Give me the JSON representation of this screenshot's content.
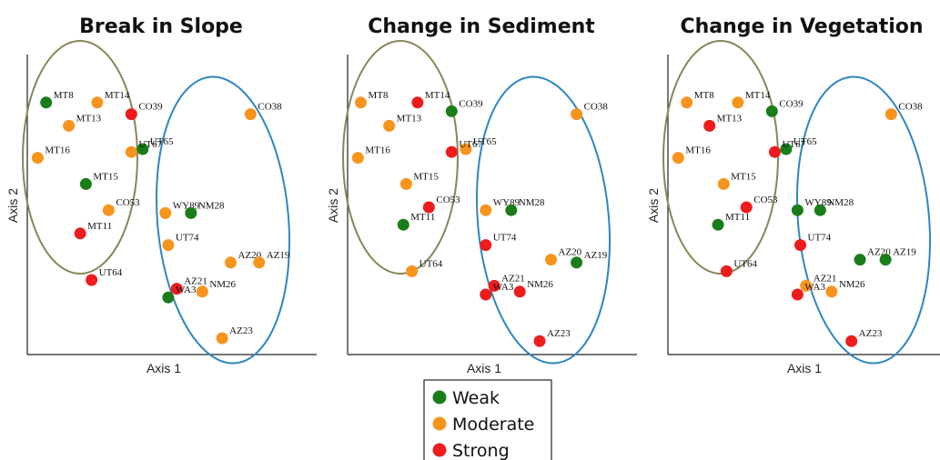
{
  "chart_data": [
    {
      "type": "scatter",
      "title": "Break in Slope",
      "xlabel": "Axis 1",
      "ylabel": "Axis 2",
      "groups": [
        {
          "shape": "ellipse",
          "color": "#8b8457"
        },
        {
          "shape": "ellipse",
          "color": "#2e86c1"
        }
      ],
      "points": [
        {
          "label": "MT8",
          "x": 0.06,
          "y": 0.86,
          "strength": "Weak"
        },
        {
          "label": "MT14",
          "x": 0.24,
          "y": 0.86,
          "strength": "Moderate"
        },
        {
          "label": "CO39",
          "x": 0.36,
          "y": 0.82,
          "strength": "Strong"
        },
        {
          "label": "MT13",
          "x": 0.14,
          "y": 0.78,
          "strength": "Moderate"
        },
        {
          "label": "CO38",
          "x": 0.78,
          "y": 0.82,
          "strength": "Moderate"
        },
        {
          "label": "UT65",
          "x": 0.4,
          "y": 0.7,
          "strength": "Weak"
        },
        {
          "label": "UT67",
          "x": 0.36,
          "y": 0.69,
          "strength": "Moderate"
        },
        {
          "label": "MT16",
          "x": 0.03,
          "y": 0.67,
          "strength": "Moderate"
        },
        {
          "label": "MT15",
          "x": 0.2,
          "y": 0.58,
          "strength": "Weak"
        },
        {
          "label": "CO53",
          "x": 0.28,
          "y": 0.49,
          "strength": "Moderate"
        },
        {
          "label": "WY89",
          "x": 0.48,
          "y": 0.48,
          "strength": "Moderate"
        },
        {
          "label": "NM28",
          "x": 0.57,
          "y": 0.48,
          "strength": "Weak"
        },
        {
          "label": "MT11",
          "x": 0.18,
          "y": 0.41,
          "strength": "Strong"
        },
        {
          "label": "UT74",
          "x": 0.49,
          "y": 0.37,
          "strength": "Moderate"
        },
        {
          "label": "AZ20",
          "x": 0.71,
          "y": 0.31,
          "strength": "Moderate"
        },
        {
          "label": "AZ19",
          "x": 0.81,
          "y": 0.31,
          "strength": "Moderate"
        },
        {
          "label": "UT64",
          "x": 0.22,
          "y": 0.25,
          "strength": "Strong"
        },
        {
          "label": "AZ21",
          "x": 0.52,
          "y": 0.22,
          "strength": "Strong"
        },
        {
          "label": "WA3",
          "x": 0.49,
          "y": 0.19,
          "strength": "Weak"
        },
        {
          "label": "NM26",
          "x": 0.61,
          "y": 0.21,
          "strength": "Moderate"
        },
        {
          "label": "AZ23",
          "x": 0.68,
          "y": 0.05,
          "strength": "Moderate"
        }
      ]
    },
    {
      "type": "scatter",
      "title": "Change in Sediment",
      "xlabel": "Axis 1",
      "ylabel": "Axis 2",
      "groups": [
        {
          "shape": "ellipse",
          "color": "#8b8457"
        },
        {
          "shape": "ellipse",
          "color": "#2e86c1"
        }
      ],
      "points": [
        {
          "label": "MT8",
          "x": 0.04,
          "y": 0.86,
          "strength": "Moderate"
        },
        {
          "label": "MT14",
          "x": 0.24,
          "y": 0.86,
          "strength": "Strong"
        },
        {
          "label": "CO39",
          "x": 0.36,
          "y": 0.83,
          "strength": "Weak"
        },
        {
          "label": "MT13",
          "x": 0.14,
          "y": 0.78,
          "strength": "Moderate"
        },
        {
          "label": "CO38",
          "x": 0.8,
          "y": 0.82,
          "strength": "Moderate"
        },
        {
          "label": "UT65",
          "x": 0.41,
          "y": 0.7,
          "strength": "Moderate"
        },
        {
          "label": "UT67",
          "x": 0.36,
          "y": 0.69,
          "strength": "Strong"
        },
        {
          "label": "MT16",
          "x": 0.03,
          "y": 0.67,
          "strength": "Moderate"
        },
        {
          "label": "MT15",
          "x": 0.2,
          "y": 0.58,
          "strength": "Moderate"
        },
        {
          "label": "CO53",
          "x": 0.28,
          "y": 0.5,
          "strength": "Strong"
        },
        {
          "label": "WY89",
          "x": 0.48,
          "y": 0.49,
          "strength": "Moderate"
        },
        {
          "label": "NM28",
          "x": 0.57,
          "y": 0.49,
          "strength": "Weak"
        },
        {
          "label": "MT11",
          "x": 0.19,
          "y": 0.44,
          "strength": "Weak"
        },
        {
          "label": "UT74",
          "x": 0.48,
          "y": 0.37,
          "strength": "Strong"
        },
        {
          "label": "AZ20",
          "x": 0.71,
          "y": 0.32,
          "strength": "Moderate"
        },
        {
          "label": "AZ19",
          "x": 0.8,
          "y": 0.31,
          "strength": "Weak"
        },
        {
          "label": "UT64",
          "x": 0.22,
          "y": 0.28,
          "strength": "Moderate"
        },
        {
          "label": "AZ21",
          "x": 0.51,
          "y": 0.23,
          "strength": "Strong"
        },
        {
          "label": "WA3",
          "x": 0.48,
          "y": 0.2,
          "strength": "Strong"
        },
        {
          "label": "NM26",
          "x": 0.6,
          "y": 0.21,
          "strength": "Strong"
        },
        {
          "label": "AZ23",
          "x": 0.67,
          "y": 0.04,
          "strength": "Strong"
        }
      ]
    },
    {
      "type": "scatter",
      "title": "Change in Vegetation",
      "xlabel": "Axis 1",
      "ylabel": "Axis 2",
      "groups": [
        {
          "shape": "ellipse",
          "color": "#8b8457"
        },
        {
          "shape": "ellipse",
          "color": "#2e86c1"
        }
      ],
      "points": [
        {
          "label": "MT8",
          "x": 0.06,
          "y": 0.86,
          "strength": "Moderate"
        },
        {
          "label": "MT14",
          "x": 0.24,
          "y": 0.86,
          "strength": "Moderate"
        },
        {
          "label": "CO39",
          "x": 0.36,
          "y": 0.83,
          "strength": "Weak"
        },
        {
          "label": "MT13",
          "x": 0.14,
          "y": 0.78,
          "strength": "Strong"
        },
        {
          "label": "CO38",
          "x": 0.78,
          "y": 0.82,
          "strength": "Moderate"
        },
        {
          "label": "UT65",
          "x": 0.41,
          "y": 0.7,
          "strength": "Weak"
        },
        {
          "label": "UT67",
          "x": 0.37,
          "y": 0.69,
          "strength": "Strong"
        },
        {
          "label": "MT16",
          "x": 0.03,
          "y": 0.67,
          "strength": "Moderate"
        },
        {
          "label": "MT15",
          "x": 0.19,
          "y": 0.58,
          "strength": "Moderate"
        },
        {
          "label": "CO53",
          "x": 0.27,
          "y": 0.5,
          "strength": "Strong"
        },
        {
          "label": "WY89",
          "x": 0.45,
          "y": 0.49,
          "strength": "Weak"
        },
        {
          "label": "NM28",
          "x": 0.53,
          "y": 0.49,
          "strength": "Weak"
        },
        {
          "label": "MT11",
          "x": 0.17,
          "y": 0.44,
          "strength": "Weak"
        },
        {
          "label": "UT74",
          "x": 0.46,
          "y": 0.37,
          "strength": "Strong"
        },
        {
          "label": "AZ20",
          "x": 0.67,
          "y": 0.32,
          "strength": "Weak"
        },
        {
          "label": "AZ19",
          "x": 0.76,
          "y": 0.32,
          "strength": "Weak"
        },
        {
          "label": "UT64",
          "x": 0.2,
          "y": 0.28,
          "strength": "Strong"
        },
        {
          "label": "AZ21",
          "x": 0.48,
          "y": 0.23,
          "strength": "Moderate"
        },
        {
          "label": "WA3",
          "x": 0.45,
          "y": 0.2,
          "strength": "Strong"
        },
        {
          "label": "NM26",
          "x": 0.57,
          "y": 0.21,
          "strength": "Moderate"
        },
        {
          "label": "AZ23",
          "x": 0.64,
          "y": 0.04,
          "strength": "Strong"
        }
      ]
    }
  ],
  "legend": {
    "entries": [
      {
        "label": "Weak",
        "color": "#1a7d1a"
      },
      {
        "label": "Moderate",
        "color": "#f7941d"
      },
      {
        "label": "Strong",
        "color": "#ee1c1c"
      }
    ]
  }
}
